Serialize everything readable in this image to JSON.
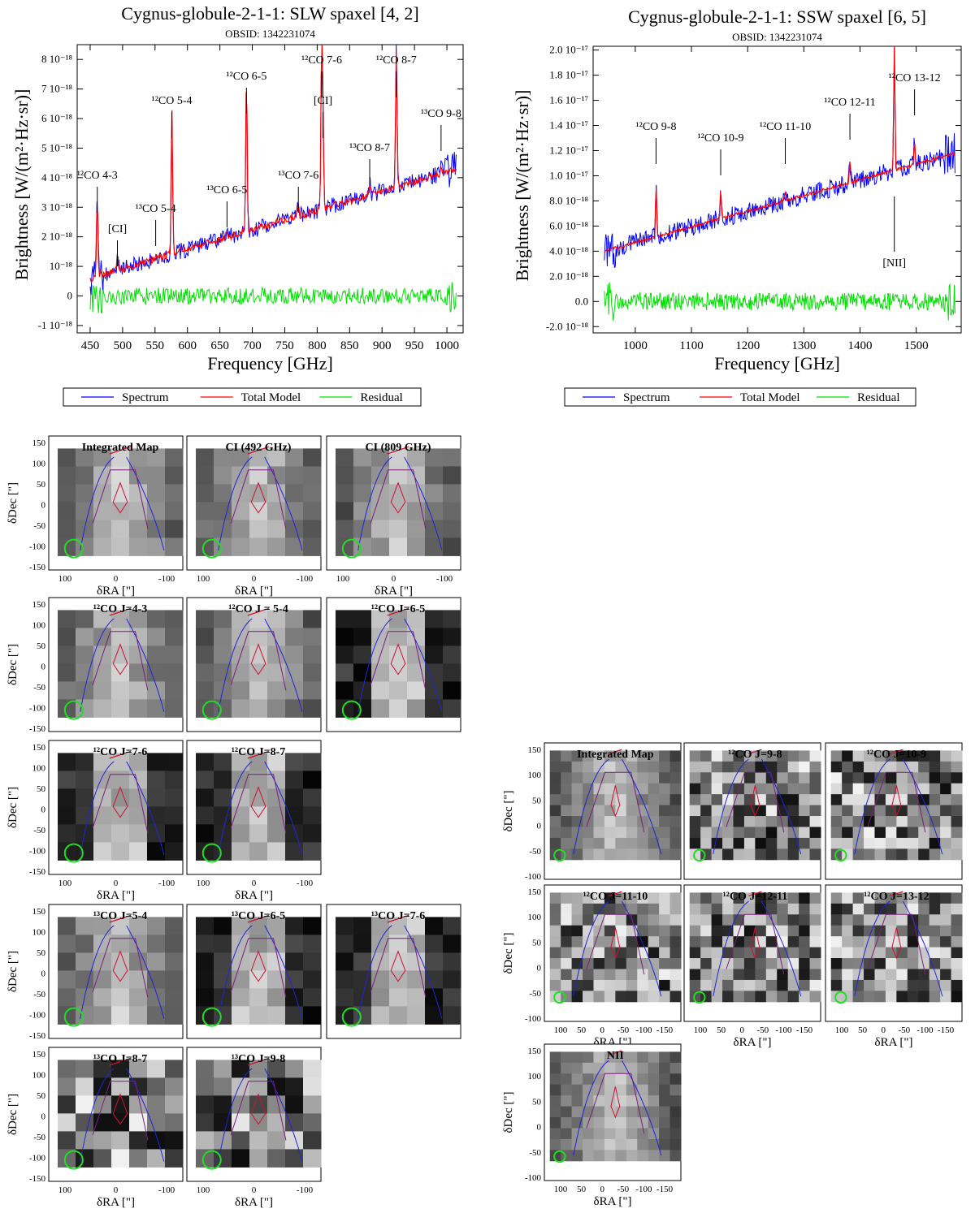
{
  "spectra": [
    {
      "title": "Cygnus-globule-2-1-1: SLW spaxel [4, 2]",
      "obsid": "OBSID:  1342231074",
      "xlabel": "Frequency [GHz]",
      "ylabel": "Brightness [W/(m²·Hz·sr)]",
      "xlim": [
        430,
        1025
      ],
      "ylim": [
        -1.25,
        8.5
      ],
      "ylim_units": "1e-18 W/(m2 Hz sr)",
      "xticks": [
        "450",
        "500",
        "550",
        "600",
        "650",
        "700",
        "750",
        "800",
        "850",
        "900",
        "950",
        "1000"
      ],
      "yticks": [
        "-1 10⁻¹⁸",
        "0",
        "10⁻¹⁸",
        "2 10⁻¹⁸",
        "3 10⁻¹⁸",
        "4 10⁻¹⁸",
        "5 10⁻¹⁸",
        "6 10⁻¹⁸",
        "7 10⁻¹⁸",
        "8 10⁻¹⁸"
      ],
      "ytick_values": [
        -1,
        0,
        1,
        2,
        3,
        4,
        5,
        6,
        7,
        8
      ],
      "continuum": {
        "x": [
          450,
          1015
        ],
        "y": [
          0.6,
          4.3
        ]
      },
      "lines": [
        {
          "label": "¹²CO 4-3",
          "freq": 461,
          "peak": 3.3
        },
        {
          "label": "[CI]",
          "freq": 492,
          "peak": 1.4
        },
        {
          "label": "¹³CO 5-4",
          "freq": 551,
          "peak": 1.4
        },
        {
          "label": "¹²CO 5-4",
          "freq": 576,
          "peak": 6.2
        },
        {
          "label": "¹³CO 6-5",
          "freq": 661,
          "peak": 2.3
        },
        {
          "label": "¹²CO 6-5",
          "freq": 691,
          "peak": 7.3
        },
        {
          "label": "¹³CO 7-6",
          "freq": 771,
          "peak": 3.1
        },
        {
          "label": "¹²CO 7-6",
          "freq": 807,
          "peak": 8.5
        },
        {
          "label": "[CI]",
          "freq": 809,
          "peak": 5.5
        },
        {
          "label": "¹³CO 8-7",
          "freq": 881,
          "peak": 3.8
        },
        {
          "label": "¹²CO 8-7",
          "freq": 922,
          "peak": 8.3
        },
        {
          "label": "¹³CO 9-8",
          "freq": 991,
          "peak": 4.5
        }
      ],
      "legend": [
        "Spectrum",
        "Total Model",
        "Residual"
      ]
    },
    {
      "title": "Cygnus-globule-2-1-1: SSW spaxel [6, 5]",
      "obsid": "OBSID:  1342231074",
      "xlabel": "Frequency [GHz]",
      "ylabel": "Brightness [W/(m²·Hz·sr)]",
      "xlim": [
        925,
        1580
      ],
      "ylim": [
        -2.5,
        20.3
      ],
      "ylim_units": "1e-18 W/(m2 Hz sr)",
      "xticks": [
        "1000",
        "1100",
        "1200",
        "1300",
        "1400",
        "1500"
      ],
      "yticks": [
        "-2.0 10⁻¹⁸",
        "0.0",
        "2.0 10⁻¹⁸",
        "4.0 10⁻¹⁸",
        "6.0 10⁻¹⁸",
        "8.0 10⁻¹⁸",
        "1.0 10⁻¹⁷",
        "1.2 10⁻¹⁷",
        "1.4 10⁻¹⁷",
        "1.6 10⁻¹⁷",
        "1.8 10⁻¹⁷",
        "2.0 10⁻¹⁷"
      ],
      "ytick_values": [
        -2,
        0,
        2,
        4,
        6,
        8,
        10,
        12,
        14,
        16,
        18,
        20
      ],
      "continuum": {
        "x": [
          945,
          1570
        ],
        "y": [
          4.0,
          11.8
        ]
      },
      "lines": [
        {
          "label": "¹²CO 9-8",
          "freq": 1037,
          "peak": 9.2
        },
        {
          "label": "¹²CO 10-9",
          "freq": 1152,
          "peak": 8.7
        },
        {
          "label": "¹²CO 11-10",
          "freq": 1267,
          "peak": 8.8
        },
        {
          "label": "¹²CO 12-11",
          "freq": 1382,
          "peak": 11.2
        },
        {
          "label": "[NII]",
          "freq": 1461,
          "peak": 20.3
        },
        {
          "label": "¹²CO 13-12",
          "freq": 1497,
          "peak": 12.7
        }
      ],
      "legend": [
        "Spectrum",
        "Total Model",
        "Residual"
      ]
    }
  ],
  "maps": {
    "xlabel": "δRA [\"]",
    "ylabel": "δDec [\"]",
    "slw_xticks": [
      "100",
      "0",
      "-100"
    ],
    "slw_yticks": [
      "150",
      "100",
      "50",
      "0",
      "-50",
      "-100",
      "-150"
    ],
    "ssw_xticks": [
      "100",
      "50",
      "0",
      "-50",
      "-100",
      "-150"
    ],
    "ssw_yticks": [
      "150",
      "100",
      "50",
      "0",
      "-50",
      "-100"
    ],
    "slw_panels": [
      "Integrated Map",
      "CI (492 GHz)",
      "CI (809 GHz)",
      "¹²CO J=4-3",
      "¹²CO J = 5-4",
      "¹²CO J=6-5",
      "¹²CO J=7-6",
      "¹²CO J=8-7",
      "¹³CO J=5-4",
      "¹³CO J=6-5",
      "¹³CO J=7-6",
      "¹³CO J=8-7",
      "¹³CO J=9-8"
    ],
    "ssw_panels": [
      "Integrated Map",
      "¹²CO J=9-8",
      "¹²CO J=10-9",
      "¹²CO J=11-10",
      "¹²CO J=12-11",
      "¹²CO J=13-12",
      "NII"
    ]
  },
  "chart_data": [
    {
      "type": "line",
      "title": "Cygnus-globule-2-1-1: SLW spaxel [4, 2]",
      "xlabel": "Frequency [GHz]",
      "ylabel": "Brightness [W/(m²·Hz·sr)]",
      "xlim": [
        430,
        1025
      ],
      "ylim": [
        -1.25e-18,
        8.5e-18
      ],
      "series": [
        {
          "name": "Spectrum",
          "color": "#0000ff"
        },
        {
          "name": "Total Model",
          "color": "#ff0000"
        },
        {
          "name": "Residual",
          "color": "#00ee00"
        }
      ],
      "line_markers": {
        "freq": [
          461,
          492,
          551,
          576,
          661,
          691,
          771,
          807,
          809,
          881,
          922,
          991
        ],
        "labels": [
          "¹²CO 4-3",
          "[CI]",
          "¹³CO 5-4",
          "¹²CO 5-4",
          "¹³CO 6-5",
          "¹²CO 6-5",
          "¹³CO 7-6",
          "¹²CO 7-6",
          "[CI]",
          "¹³CO 8-7",
          "¹²CO 8-7",
          "¹³CO 9-8"
        ]
      },
      "legend": "bottom"
    },
    {
      "type": "line",
      "title": "Cygnus-globule-2-1-1: SSW spaxel [6, 5]",
      "xlabel": "Frequency [GHz]",
      "ylabel": "Brightness [W/(m²·Hz·sr)]",
      "xlim": [
        925,
        1580
      ],
      "ylim": [
        -2.5e-18,
        2.03e-17
      ],
      "series": [
        {
          "name": "Spectrum",
          "color": "#0000ff"
        },
        {
          "name": "Total Model",
          "color": "#ff0000"
        },
        {
          "name": "Residual",
          "color": "#00ee00"
        }
      ],
      "line_markers": {
        "freq": [
          1037,
          1152,
          1267,
          1382,
          1461,
          1497
        ],
        "labels": [
          "¹²CO 9-8",
          "¹²CO 10-9",
          "¹²CO 11-10",
          "¹²CO 12-11",
          "[NII]",
          "¹²CO 13-12"
        ]
      },
      "legend": "bottom"
    },
    {
      "type": "heatmap",
      "title": "",
      "panels": [
        "Integrated Map",
        "CI (492 GHz)",
        "CI (809 GHz)",
        "¹²CO J=4-3",
        "¹²CO J = 5-4",
        "¹²CO J=6-5",
        "¹²CO J=7-6",
        "¹²CO J=8-7",
        "¹³CO J=5-4",
        "¹³CO J=6-5",
        "¹³CO J=7-6",
        "¹³CO J=8-7",
        "¹³CO J=9-8"
      ],
      "xlabel": "δRA [\"]",
      "ylabel": "δDec [\"]",
      "xlim": [
        150,
        -150
      ],
      "ylim": [
        -150,
        150
      ]
    },
    {
      "type": "heatmap",
      "title": "",
      "panels": [
        "Integrated Map",
        "¹²CO J=9-8",
        "¹²CO J=10-9",
        "¹²CO J=11-10",
        "¹²CO J=12-11",
        "¹²CO J=13-12",
        "NII"
      ],
      "xlabel": "δRA [\"]",
      "ylabel": "δDec [\"]",
      "xlim": [
        150,
        -150
      ],
      "ylim": [
        -150,
        150
      ]
    }
  ]
}
